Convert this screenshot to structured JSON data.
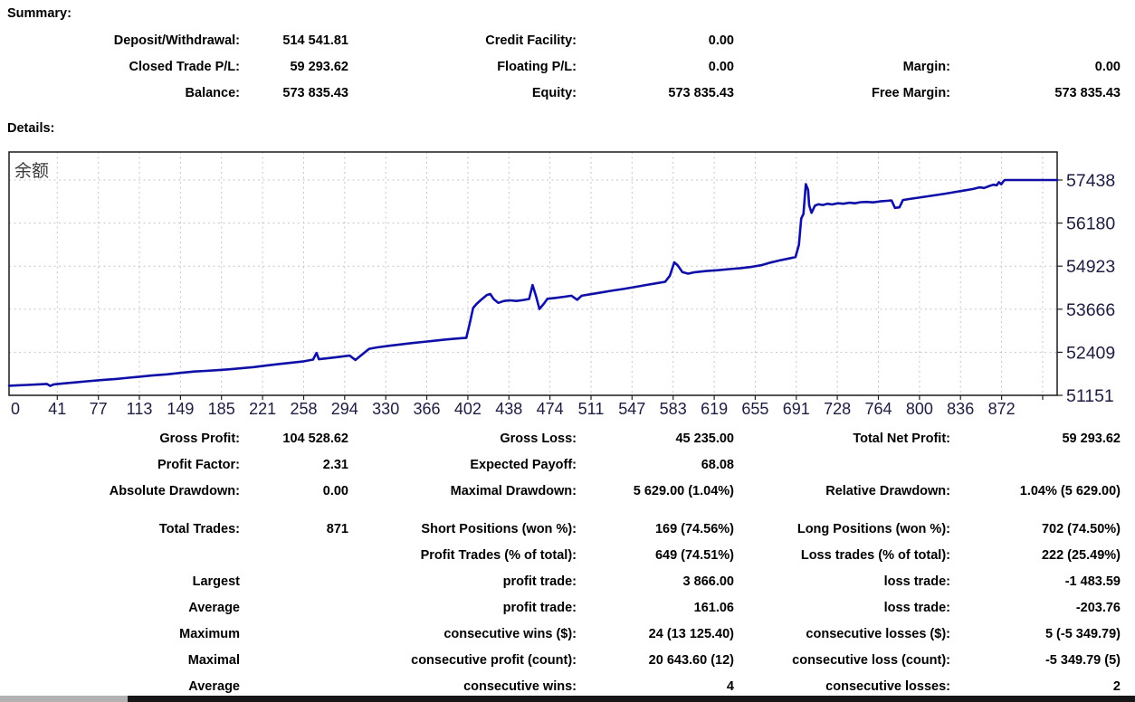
{
  "summary": {
    "heading": "Summary:",
    "row_tops": [
      37,
      66,
      95
    ],
    "rows": [
      [
        "Deposit/Withdrawal:",
        "514 541.81",
        "Credit Facility:",
        "0.00",
        "",
        ""
      ],
      [
        "Closed Trade P/L:",
        "59 293.62",
        "Floating P/L:",
        "0.00",
        "Margin:",
        "0.00"
      ],
      [
        "Balance:",
        "573 835.43",
        "Equity:",
        "573 835.43",
        "Free Margin:",
        "573 835.43"
      ]
    ]
  },
  "details_heading": "Details:",
  "stats": {
    "row_tops": [
      477,
      506,
      535,
      577,
      606,
      635,
      664,
      693,
      722,
      751
    ],
    "rows": [
      [
        "Gross Profit:",
        "104 528.62",
        "Gross Loss:",
        "45 235.00",
        "Total Net Profit:",
        "59 293.62"
      ],
      [
        "Profit Factor:",
        "2.31",
        "Expected Payoff:",
        "68.08",
        "",
        ""
      ],
      [
        "Absolute Drawdown:",
        "0.00",
        "Maximal Drawdown:",
        "5 629.00 (1.04%)",
        "Relative Drawdown:",
        "1.04% (5 629.00)"
      ],
      [
        "Total Trades:",
        "871",
        "Short Positions (won %):",
        "169 (74.56%)",
        "Long Positions (won %):",
        "702 (74.50%)"
      ],
      [
        "",
        "",
        "Profit Trades (% of total):",
        "649 (74.51%)",
        "Loss trades (% of total):",
        "222 (25.49%)"
      ],
      [
        "Largest",
        "",
        "profit trade:",
        "3 866.00",
        "loss trade:",
        "-1 483.59"
      ],
      [
        "Average",
        "",
        "profit trade:",
        "161.06",
        "loss trade:",
        "-203.76"
      ],
      [
        "Maximum",
        "",
        "consecutive wins ($):",
        "24 (13 125.40)",
        "consecutive losses ($):",
        "5 (-5 349.79)"
      ],
      [
        "Maximal",
        "",
        "consecutive profit (count):",
        "20 643.60 (12)",
        "consecutive loss (count):",
        "-5 349.79 (5)"
      ],
      [
        "Average",
        "",
        "consecutive wins:",
        "4",
        "consecutive losses:",
        "2"
      ]
    ]
  },
  "chart_data": {
    "type": "line",
    "title": "余额",
    "xlabel": "",
    "ylabel": "",
    "xlim": [
      0,
      880
    ],
    "ylim": [
      51151,
      57690
    ],
    "grid": "dashed",
    "y_axis_side": "right",
    "x_tick_labels": [
      "0",
      "41",
      "77",
      "113",
      "149",
      "185",
      "221",
      "258",
      "294",
      "330",
      "366",
      "402",
      "438",
      "474",
      "511",
      "547",
      "583",
      "619",
      "655",
      "691",
      "728",
      "764",
      "800",
      "836",
      "872"
    ],
    "y_tick_labels": [
      57438,
      56180,
      54923,
      53666,
      52409,
      51151
    ],
    "series": [
      {
        "name": "余额",
        "color": "#0f0fa8",
        "points": [
          [
            0,
            51430
          ],
          [
            8,
            51445
          ],
          [
            16,
            51455
          ],
          [
            25,
            51470
          ],
          [
            33,
            51485
          ],
          [
            36,
            51425
          ],
          [
            39,
            51470
          ],
          [
            48,
            51500
          ],
          [
            58,
            51530
          ],
          [
            68,
            51560
          ],
          [
            80,
            51595
          ],
          [
            92,
            51625
          ],
          [
            105,
            51665
          ],
          [
            113,
            51690
          ],
          [
            125,
            51730
          ],
          [
            138,
            51765
          ],
          [
            150,
            51805
          ],
          [
            162,
            51845
          ],
          [
            172,
            51865
          ],
          [
            182,
            51885
          ],
          [
            192,
            51910
          ],
          [
            203,
            51940
          ],
          [
            214,
            51975
          ],
          [
            225,
            52020
          ],
          [
            236,
            52065
          ],
          [
            247,
            52105
          ],
          [
            258,
            52145
          ],
          [
            266,
            52195
          ],
          [
            269,
            52390
          ],
          [
            271,
            52205
          ],
          [
            280,
            52240
          ],
          [
            290,
            52280
          ],
          [
            298,
            52310
          ],
          [
            303,
            52185
          ],
          [
            308,
            52320
          ],
          [
            315,
            52510
          ],
          [
            322,
            52550
          ],
          [
            332,
            52595
          ],
          [
            342,
            52635
          ],
          [
            352,
            52675
          ],
          [
            362,
            52710
          ],
          [
            372,
            52745
          ],
          [
            382,
            52780
          ],
          [
            392,
            52810
          ],
          [
            400,
            52830
          ],
          [
            403,
            53250
          ],
          [
            406,
            53700
          ],
          [
            409,
            53820
          ],
          [
            413,
            53940
          ],
          [
            418,
            54080
          ],
          [
            421,
            54110
          ],
          [
            424,
            53960
          ],
          [
            428,
            53850
          ],
          [
            433,
            53905
          ],
          [
            438,
            53925
          ],
          [
            444,
            53905
          ],
          [
            450,
            53935
          ],
          [
            455,
            53965
          ],
          [
            458,
            54370
          ],
          [
            461,
            54050
          ],
          [
            464,
            53670
          ],
          [
            468,
            53830
          ],
          [
            471,
            53970
          ],
          [
            478,
            53995
          ],
          [
            486,
            54030
          ],
          [
            492,
            54060
          ],
          [
            497,
            53940
          ],
          [
            501,
            54060
          ],
          [
            509,
            54105
          ],
          [
            518,
            54155
          ],
          [
            527,
            54205
          ],
          [
            537,
            54255
          ],
          [
            547,
            54310
          ],
          [
            557,
            54370
          ],
          [
            566,
            54420
          ],
          [
            574,
            54465
          ],
          [
            578,
            54640
          ],
          [
            582,
            55035
          ],
          [
            585,
            54945
          ],
          [
            589,
            54750
          ],
          [
            594,
            54705
          ],
          [
            600,
            54745
          ],
          [
            610,
            54780
          ],
          [
            620,
            54805
          ],
          [
            630,
            54835
          ],
          [
            640,
            54865
          ],
          [
            650,
            54905
          ],
          [
            658,
            54950
          ],
          [
            666,
            55025
          ],
          [
            674,
            55090
          ],
          [
            682,
            55145
          ],
          [
            688,
            55190
          ],
          [
            691,
            55550
          ],
          [
            693,
            56310
          ],
          [
            695,
            56450
          ],
          [
            697,
            57320
          ],
          [
            699,
            57150
          ],
          [
            700,
            56700
          ],
          [
            702,
            56480
          ],
          [
            705,
            56690
          ],
          [
            708,
            56730
          ],
          [
            712,
            56710
          ],
          [
            716,
            56745
          ],
          [
            720,
            56725
          ],
          [
            725,
            56760
          ],
          [
            730,
            56745
          ],
          [
            735,
            56775
          ],
          [
            740,
            56760
          ],
          [
            745,
            56790
          ],
          [
            750,
            56800
          ],
          [
            756,
            56785
          ],
          [
            762,
            56815
          ],
          [
            768,
            56830
          ],
          [
            772,
            56840
          ],
          [
            775,
            56625
          ],
          [
            779,
            56640
          ],
          [
            782,
            56855
          ],
          [
            788,
            56885
          ],
          [
            795,
            56920
          ],
          [
            803,
            56960
          ],
          [
            811,
            57000
          ],
          [
            819,
            57040
          ],
          [
            827,
            57085
          ],
          [
            835,
            57130
          ],
          [
            843,
            57175
          ],
          [
            849,
            57225
          ],
          [
            853,
            57205
          ],
          [
            857,
            57255
          ],
          [
            861,
            57300
          ],
          [
            864,
            57285
          ],
          [
            866,
            57375
          ],
          [
            868,
            57315
          ],
          [
            870,
            57400
          ],
          [
            871,
            57438
          ]
        ]
      }
    ]
  },
  "colors": {
    "line": "#0f0fa8",
    "grid": "#c6c6c6",
    "chart_border": "#1a1a1a",
    "text": "#000000",
    "strip_light": "#b2b2b2",
    "strip_dark": "#161616"
  }
}
